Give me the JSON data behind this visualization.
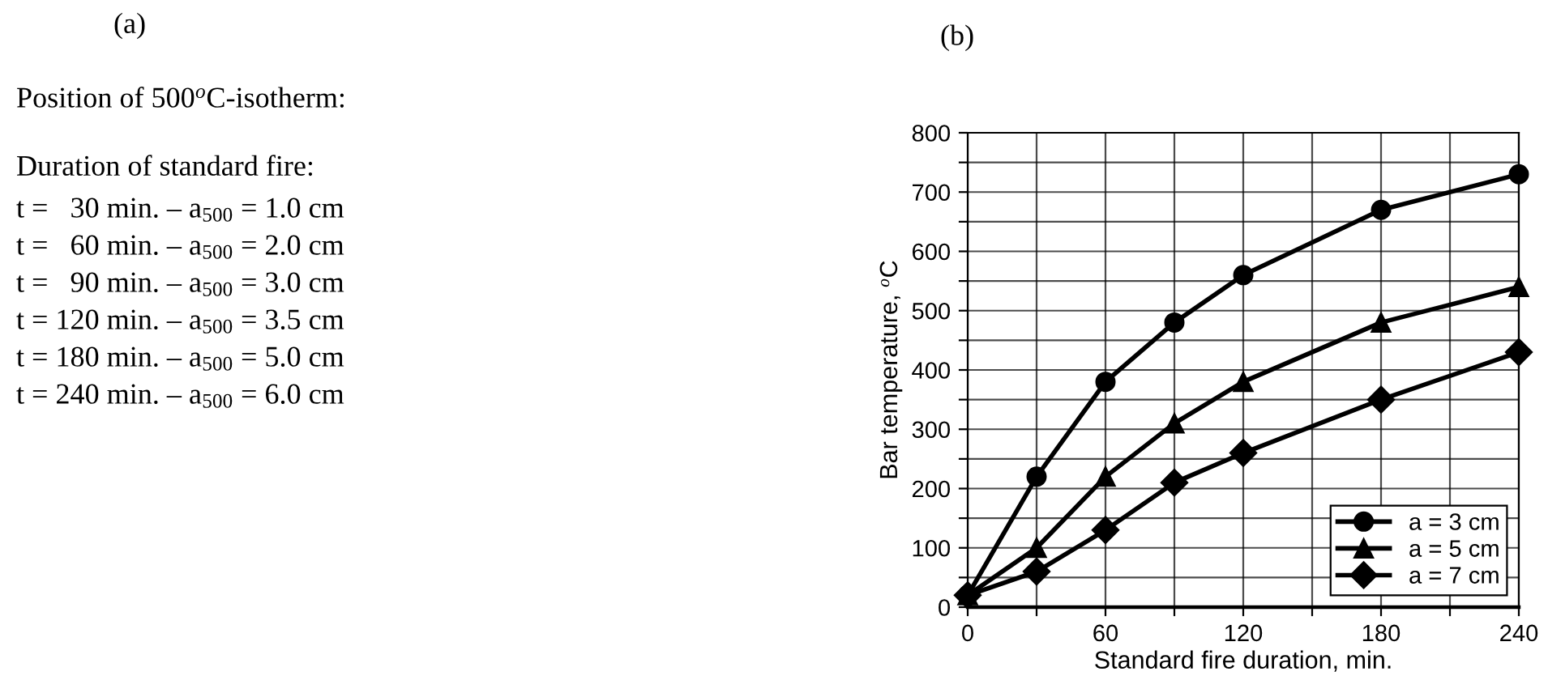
{
  "chart_data": [
    {
      "type": "other",
      "title": "(a)",
      "annotations": [
        "Position of 500$^{o}$C-isotherm:",
        "Duration of standard fire:",
        "t =   30 min. – a$_{500}$ = 1.0 cm",
        "t =   60 min. – a$_{500}$ = 2.0 cm",
        "t =   90 min. – a$_{500}$ = 3.0 cm",
        "t = 120 min. – a$_{500}$ = 3.5 cm",
        "t = 180 min. – a$_{500}$ = 5.0 cm",
        "t = 240 min. – a$_{500}$ = 6.0 cm"
      ]
    },
    {
      "type": "line",
      "title": "(b)",
      "xlabel": "Standard fire duration, min.",
      "ylabel": "Bar temperature, $^{o}$C",
      "x": [
        0,
        30,
        60,
        90,
        120,
        180,
        240
      ],
      "series": [
        {
          "name": "a = 3 cm",
          "color": "#000000",
          "marker": "circle",
          "values": [
            20,
            220,
            380,
            480,
            560,
            670,
            730
          ]
        },
        {
          "name": "a = 5 cm",
          "color": "#000000",
          "marker": "triangle",
          "values": [
            20,
            100,
            220,
            310,
            380,
            480,
            540
          ]
        },
        {
          "name": "a = 7 cm",
          "color": "#000000",
          "marker": "diamond",
          "values": [
            20,
            60,
            130,
            210,
            260,
            350,
            430
          ]
        }
      ],
      "xlim": [
        0,
        240
      ],
      "xticks": [
        0,
        {
          "value": 30,
          "label": null
        },
        60,
        {
          "value": 90,
          "label": null
        },
        120,
        {
          "value": 150,
          "label": null
        },
        180,
        {
          "value": 210,
          "label": null
        },
        240
      ],
      "ylim": [
        0,
        800
      ],
      "yticks": [
        0,
        {
          "value": 50,
          "label": null
        },
        100,
        {
          "value": 150,
          "label": null
        },
        200,
        {
          "value": 250,
          "label": null
        },
        300,
        {
          "value": 350,
          "label": null
        },
        400,
        {
          "value": 450,
          "label": null
        },
        500,
        {
          "value": 550,
          "label": null
        },
        600,
        {
          "value": 650,
          "label": null
        },
        700,
        {
          "value": 750,
          "label": null
        },
        800
      ],
      "grid": true,
      "legend": "bottom right",
      "line_style": "solid"
    }
  ]
}
